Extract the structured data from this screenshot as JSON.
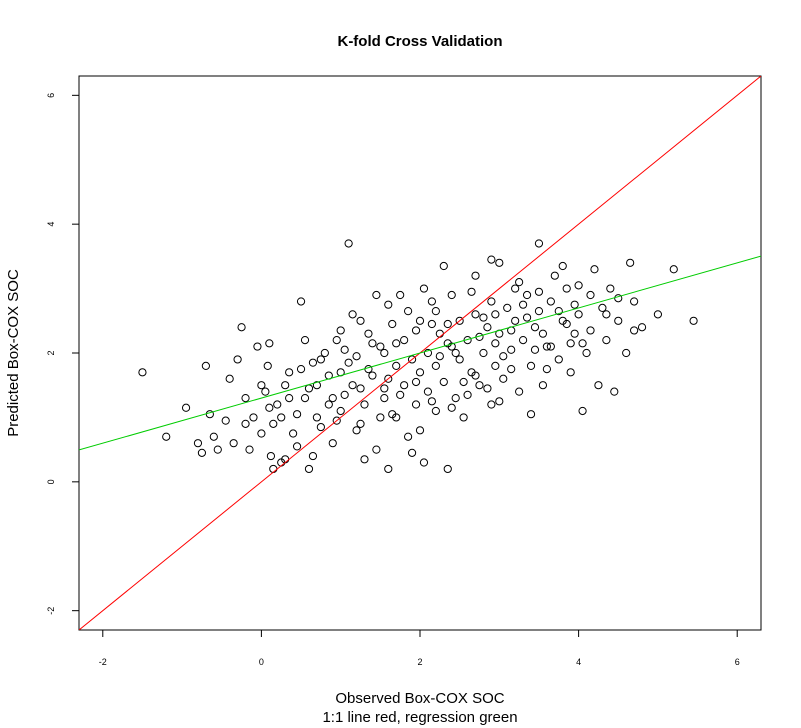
{
  "chart_data": {
    "type": "scatter",
    "title": "K-fold Cross Validation",
    "xlabel": "Observed Box-COX SOC",
    "xlabel_sub": "1:1 line red, regression green",
    "ylabel": "Predicted Box-COX SOC",
    "xlim": [
      -2.3,
      6.3
    ],
    "ylim": [
      -2.3,
      6.3
    ],
    "x_ticks": [
      -2,
      0,
      2,
      4,
      6
    ],
    "y_ticks": [
      -2,
      0,
      2,
      4,
      6
    ],
    "grid": false,
    "marker": "open-circle",
    "lines": [
      {
        "label": "1:1 line",
        "color": "#ff0000",
        "intercept": 0,
        "slope": 1
      },
      {
        "label": "regression",
        "color": "#00cc00",
        "intercept": 1.3,
        "slope": 0.35
      }
    ],
    "points": [
      [
        -1.5,
        1.7
      ],
      [
        -1.2,
        0.7
      ],
      [
        -0.95,
        1.15
      ],
      [
        -0.8,
        0.6
      ],
      [
        -0.75,
        0.45
      ],
      [
        -0.7,
        1.8
      ],
      [
        -0.65,
        1.05
      ],
      [
        -0.6,
        0.7
      ],
      [
        -0.55,
        0.5
      ],
      [
        -0.45,
        0.95
      ],
      [
        -0.4,
        1.6
      ],
      [
        -0.35,
        0.6
      ],
      [
        -0.3,
        1.9
      ],
      [
        -0.25,
        2.4
      ],
      [
        -0.2,
        1.3
      ],
      [
        -0.15,
        0.5
      ],
      [
        -0.1,
        1.0
      ],
      [
        -0.05,
        2.1
      ],
      [
        0.0,
        0.75
      ],
      [
        0.05,
        1.4
      ],
      [
        0.08,
        1.8
      ],
      [
        0.1,
        2.15
      ],
      [
        0.12,
        0.4
      ],
      [
        0.15,
        0.2
      ],
      [
        0.15,
        0.9
      ],
      [
        0.2,
        1.2
      ],
      [
        0.25,
        0.3
      ],
      [
        0.3,
        1.5
      ],
      [
        0.35,
        1.7
      ],
      [
        0.4,
        0.75
      ],
      [
        0.45,
        1.05
      ],
      [
        0.5,
        2.8
      ],
      [
        0.55,
        1.3
      ],
      [
        0.6,
        0.2
      ],
      [
        0.65,
        0.4
      ],
      [
        0.7,
        1.0
      ],
      [
        0.7,
        1.5
      ],
      [
        0.75,
        1.9
      ],
      [
        0.8,
        2.0
      ],
      [
        0.85,
        1.2
      ],
      [
        0.9,
        0.6
      ],
      [
        0.9,
        1.3
      ],
      [
        0.95,
        2.2
      ],
      [
        1.0,
        1.7
      ],
      [
        1.0,
        1.1
      ],
      [
        1.05,
        2.05
      ],
      [
        1.1,
        3.7
      ],
      [
        1.15,
        1.5
      ],
      [
        1.2,
        0.8
      ],
      [
        1.2,
        1.95
      ],
      [
        1.25,
        2.5
      ],
      [
        1.3,
        1.2
      ],
      [
        1.35,
        2.3
      ],
      [
        1.4,
        1.65
      ],
      [
        1.45,
        0.5
      ],
      [
        1.5,
        1.0
      ],
      [
        1.5,
        2.1
      ],
      [
        1.55,
        1.3
      ],
      [
        1.6,
        0.2
      ],
      [
        1.6,
        1.6
      ],
      [
        1.65,
        2.45
      ],
      [
        1.7,
        1.0
      ],
      [
        1.7,
        1.8
      ],
      [
        1.75,
        2.9
      ],
      [
        1.8,
        1.5
      ],
      [
        1.8,
        2.2
      ],
      [
        1.85,
        0.7
      ],
      [
        1.9,
        1.9
      ],
      [
        1.95,
        1.2
      ],
      [
        2.0,
        2.5
      ],
      [
        2.0,
        1.7
      ],
      [
        2.05,
        0.3
      ],
      [
        2.1,
        2.0
      ],
      [
        2.1,
        1.4
      ],
      [
        2.15,
        2.8
      ],
      [
        2.2,
        1.1
      ],
      [
        2.2,
        1.8
      ],
      [
        2.25,
        2.3
      ],
      [
        2.3,
        1.55
      ],
      [
        2.35,
        0.2
      ],
      [
        2.4,
        2.1
      ],
      [
        2.4,
        2.9
      ],
      [
        2.45,
        1.3
      ],
      [
        2.5,
        1.9
      ],
      [
        2.5,
        2.5
      ],
      [
        2.55,
        1.0
      ],
      [
        2.6,
        2.2
      ],
      [
        2.65,
        1.7
      ],
      [
        2.7,
        2.6
      ],
      [
        2.7,
        3.2
      ],
      [
        2.75,
        1.5
      ],
      [
        2.8,
        2.0
      ],
      [
        2.85,
        2.4
      ],
      [
        2.9,
        1.2
      ],
      [
        2.9,
        2.8
      ],
      [
        2.95,
        1.8
      ],
      [
        3.0,
        2.3
      ],
      [
        3.0,
        3.4
      ],
      [
        3.05,
        1.6
      ],
      [
        3.1,
        2.7
      ],
      [
        3.15,
        2.05
      ],
      [
        3.2,
        2.5
      ],
      [
        3.2,
        3.0
      ],
      [
        3.25,
        1.4
      ],
      [
        3.3,
        2.2
      ],
      [
        3.35,
        2.9
      ],
      [
        3.4,
        1.8
      ],
      [
        3.45,
        2.4
      ],
      [
        3.5,
        3.7
      ],
      [
        3.5,
        2.65
      ],
      [
        3.55,
        1.5
      ],
      [
        3.6,
        2.1
      ],
      [
        3.65,
        2.8
      ],
      [
        3.7,
        3.2
      ],
      [
        3.75,
        1.9
      ],
      [
        3.8,
        2.5
      ],
      [
        3.85,
        3.0
      ],
      [
        3.9,
        1.7
      ],
      [
        3.95,
        2.3
      ],
      [
        4.0,
        2.6
      ],
      [
        4.05,
        1.1
      ],
      [
        4.1,
        2.0
      ],
      [
        4.15,
        2.9
      ],
      [
        4.2,
        3.3
      ],
      [
        4.25,
        1.5
      ],
      [
        4.3,
        2.7
      ],
      [
        4.35,
        2.2
      ],
      [
        4.4,
        3.0
      ],
      [
        4.45,
        1.4
      ],
      [
        4.5,
        2.5
      ],
      [
        4.6,
        2.0
      ],
      [
        4.65,
        3.4
      ],
      [
        4.7,
        2.8
      ],
      [
        4.8,
        2.4
      ],
      [
        5.0,
        2.6
      ],
      [
        5.2,
        3.3
      ],
      [
        5.45,
        2.5
      ],
      [
        0.35,
        1.3
      ],
      [
        0.55,
        2.2
      ],
      [
        0.85,
        1.65
      ],
      [
        1.15,
        2.6
      ],
      [
        1.45,
        2.9
      ],
      [
        1.75,
        1.35
      ],
      [
        2.05,
        3.0
      ],
      [
        2.35,
        2.45
      ],
      [
        2.65,
        2.95
      ],
      [
        2.95,
        2.6
      ],
      [
        3.25,
        3.1
      ],
      [
        3.55,
        2.3
      ],
      [
        3.85,
        2.45
      ],
      [
        4.15,
        2.35
      ],
      [
        0.25,
        1.0
      ],
      [
        0.65,
        1.85
      ],
      [
        0.95,
        0.95
      ],
      [
        1.25,
        1.45
      ],
      [
        1.55,
        2.0
      ],
      [
        1.85,
        2.65
      ],
      [
        2.15,
        1.25
      ],
      [
        2.45,
        2.0
      ],
      [
        2.75,
        2.25
      ],
      [
        3.05,
        1.95
      ],
      [
        3.35,
        2.55
      ],
      [
        3.65,
        2.1
      ],
      [
        3.95,
        2.75
      ],
      [
        -0.2,
        0.9
      ],
      [
        0.0,
        1.5
      ],
      [
        0.45,
        0.55
      ],
      [
        0.75,
        0.85
      ],
      [
        1.05,
        1.35
      ],
      [
        1.35,
        1.75
      ],
      [
        1.65,
        1.05
      ],
      [
        1.95,
        2.35
      ],
      [
        2.25,
        1.95
      ],
      [
        2.55,
        1.55
      ],
      [
        2.85,
        1.45
      ],
      [
        3.15,
        2.35
      ],
      [
        3.45,
        2.05
      ],
      [
        3.75,
        2.65
      ],
      [
        4.05,
        2.15
      ],
      [
        4.35,
        2.6
      ],
      [
        1.3,
        0.35
      ],
      [
        1.0,
        2.35
      ],
      [
        2.0,
        0.8
      ],
      [
        2.6,
        1.35
      ],
      [
        3.4,
        1.05
      ],
      [
        1.6,
        2.75
      ],
      [
        2.3,
        3.35
      ],
      [
        2.9,
        3.45
      ],
      [
        0.5,
        1.75
      ],
      [
        1.9,
        0.45
      ],
      [
        2.7,
        1.65
      ],
      [
        3.6,
        1.75
      ],
      [
        0.3,
        0.35
      ],
      [
        1.4,
        2.15
      ],
      [
        2.2,
        2.65
      ],
      [
        3.0,
        1.25
      ],
      [
        3.8,
        3.35
      ],
      [
        4.5,
        2.85
      ],
      [
        1.1,
        1.85
      ],
      [
        2.4,
        1.15
      ],
      [
        3.3,
        2.75
      ],
      [
        0.1,
        1.15
      ],
      [
        1.7,
        2.15
      ],
      [
        2.8,
        2.55
      ],
      [
        3.9,
        2.15
      ],
      [
        4.7,
        2.35
      ],
      [
        1.55,
        1.45
      ],
      [
        2.35,
        2.15
      ],
      [
        3.15,
        1.75
      ],
      [
        0.6,
        1.45
      ],
      [
        2.15,
        2.45
      ],
      [
        2.95,
        2.15
      ],
      [
        1.25,
        0.9
      ],
      [
        1.95,
        1.55
      ],
      [
        3.5,
        2.95
      ],
      [
        4.0,
        3.05
      ]
    ]
  }
}
